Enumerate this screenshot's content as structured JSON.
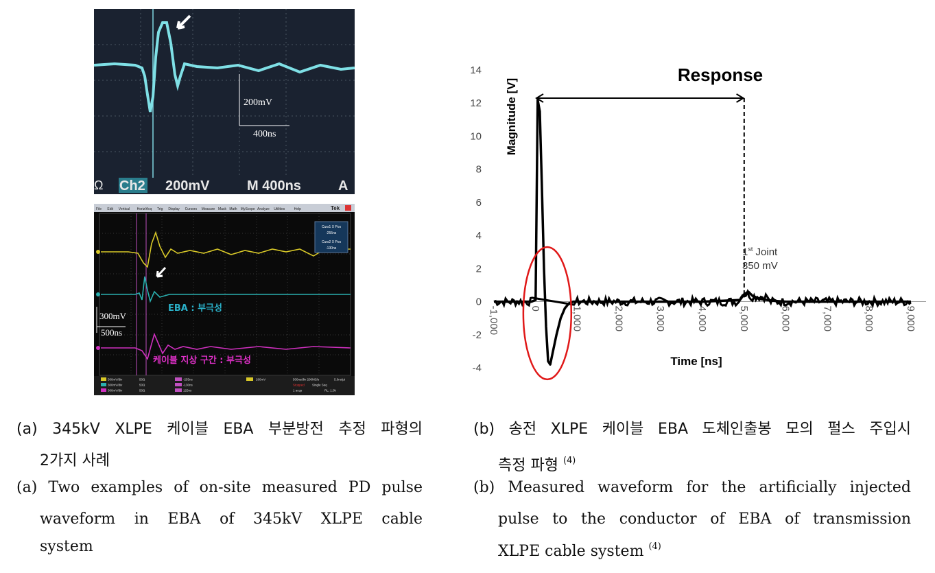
{
  "scope1": {
    "bottom_bar": "Ω°ₗCh2   200mV Ω°ₗM 400ns   A",
    "ch_label": "Ch2",
    "volt_label": "200mV",
    "time_label": "400ns",
    "bottom_left": "Ω",
    "bottom_mid": "200mV",
    "bottom_m": "M 400ns",
    "bottom_a": "A"
  },
  "scope2": {
    "menu": [
      "File",
      "Edit",
      "Vertical",
      "Horiz/Acq",
      "Trig",
      "Display",
      "Cursors",
      "Measure",
      "Mask",
      "Math",
      "MyScope",
      "Analyze",
      "Utilities",
      "Help"
    ],
    "brand": "Tek",
    "cursor_box": {
      "c1_title": "Curs1 X Pos",
      "c1_val": "-255ns",
      "c2_title": "Curs2 X Pos",
      "c2_val": "-130ns"
    },
    "label_eba": "EBA : 부극성",
    "label_cable": "케이블 지상 구간 : 부극성",
    "volt_label": "300mV",
    "time_label": "500ns",
    "status": {
      "ch1": "500mV/div",
      "ch2": "300mV/div",
      "ch3": "300mV/div",
      "imp": "50Ω",
      "m1": "-255ns",
      "m2": "-130ns",
      "m3": "125ns",
      "trig": "280mV",
      "rate": "500ns/div  200MS/s",
      "res": "5.0ns/pt",
      "stopped": "Stopped",
      "seq": "Single Seq",
      "acqs": "1 acqs",
      "rl": "RL: 1.0k"
    }
  },
  "chart_data": {
    "type": "line",
    "title": "Response",
    "xlabel": "Time [ns]",
    "ylabel": "Magnitude [V]",
    "xlim": [
      -1000,
      9000
    ],
    "ylim": [
      -4,
      14
    ],
    "xticks": [
      "-1,000",
      "0",
      "1,000",
      "2,000",
      "3,000",
      "4,000",
      "5,000",
      "6,000",
      "7,000",
      "8,000",
      "9,000"
    ],
    "yticks": [
      "-4",
      "-2",
      "0",
      "2",
      "4",
      "6",
      "8",
      "10",
      "12",
      "14"
    ],
    "annotation_joint_1": "1",
    "annotation_joint_sup": "st",
    "annotation_joint_2": " Joint",
    "annotation_joint_3": "350 mV",
    "series": [
      {
        "x": [
          -1000,
          -500,
          -100,
          0,
          50,
          100,
          150,
          200,
          250,
          300,
          350,
          400,
          500,
          600,
          700,
          800,
          900,
          1000,
          2000,
          3000,
          4000,
          4900,
          5000,
          5100,
          5200,
          5400,
          5700,
          6000,
          7000,
          8000,
          9000
        ],
        "y": [
          0,
          0,
          0,
          0.1,
          12.2,
          11.5,
          7,
          2,
          -1.5,
          -3.6,
          -3.8,
          -3.2,
          -2,
          -1,
          -0.4,
          -0.1,
          0,
          0,
          0,
          0,
          0,
          0.1,
          0.45,
          0.6,
          0.35,
          0.15,
          0.05,
          0,
          0,
          0,
          0
        ]
      }
    ]
  },
  "captions": {
    "a_kr_1": "(a) 345kV XLPE 케이블 EBA 부분방전 추정 파형의",
    "a_kr_2": "2가지 사례",
    "a_en_1": "(a) Two examples of on-site measured PD pulse",
    "a_en_2": "waveform in EBA of 345kV XLPE cable",
    "a_en_3": "system",
    "b_kr_1": "(b) 송전 XLPE 케이블 EBA 도체인출봉 모의 펄스 주입시",
    "b_kr_2": "측정 파형",
    "b_kr_ref": "(4)",
    "b_en_1": "(b) Measured waveform for the artificially injected",
    "b_en_2": "pulse to the conductor of EBA of transmission",
    "b_en_3": "XLPE cable system",
    "b_en_ref": "(4)"
  }
}
